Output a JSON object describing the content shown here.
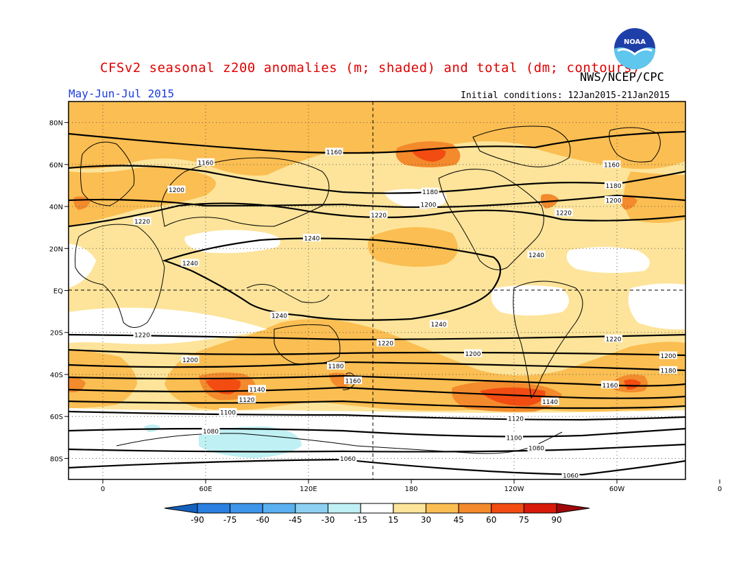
{
  "header": {
    "title": "CFSv2 seasonal z200 anomalies (m; shaded) and total (dm; contours)",
    "agency": "NWS/NCEP/CPC",
    "period": "May-Jun-Jul 2015",
    "initial_conditions": "Initial conditions: 12Jan2015-21Jan2015",
    "logo_text": "NOAA",
    "logo_icon": "noaa-logo-icon"
  },
  "map": {
    "projection": "cylindrical equidistant",
    "lat_ticks": [
      "80N",
      "60N",
      "40N",
      "20N",
      "EQ",
      "20S",
      "40S",
      "60S",
      "80S"
    ],
    "lon_ticks": [
      "0",
      "60E",
      "120E",
      "180",
      "120W",
      "60W",
      "0"
    ],
    "contour_labels": [
      {
        "text": "1160",
        "lon": 60,
        "lat": 61
      },
      {
        "text": "1160",
        "lon": 135,
        "lat": 66
      },
      {
        "text": "1160",
        "lon": 297,
        "lat": 60
      },
      {
        "text": "1180",
        "lon": 298,
        "lat": 50
      },
      {
        "text": "1180",
        "lon": 191,
        "lat": 47
      },
      {
        "text": "1200",
        "lon": 43,
        "lat": 48
      },
      {
        "text": "1200",
        "lon": 190,
        "lat": 41
      },
      {
        "text": "1200",
        "lon": 298,
        "lat": 43
      },
      {
        "text": "1220",
        "lon": 23,
        "lat": 33
      },
      {
        "text": "1220",
        "lon": 161,
        "lat": 36
      },
      {
        "text": "1220",
        "lon": 269,
        "lat": 37
      },
      {
        "text": "1240",
        "lon": 122,
        "lat": 25
      },
      {
        "text": "1240",
        "lon": 253,
        "lat": 17
      },
      {
        "text": "1240",
        "lon": 51,
        "lat": 13
      },
      {
        "text": "1240",
        "lon": 103,
        "lat": -12
      },
      {
        "text": "1240",
        "lon": 196,
        "lat": -16
      },
      {
        "text": "1220",
        "lon": 23,
        "lat": -21
      },
      {
        "text": "1220",
        "lon": 165,
        "lat": -25
      },
      {
        "text": "1220",
        "lon": 298,
        "lat": -23
      },
      {
        "text": "1200",
        "lon": 51,
        "lat": -33
      },
      {
        "text": "1200",
        "lon": 216,
        "lat": -30
      },
      {
        "text": "1200",
        "lon": 330,
        "lat": -31
      },
      {
        "text": "1180",
        "lon": 136,
        "lat": -36
      },
      {
        "text": "1180",
        "lon": 330,
        "lat": -38
      },
      {
        "text": "1160",
        "lon": 146,
        "lat": -43
      },
      {
        "text": "1160",
        "lon": 296,
        "lat": -45
      },
      {
        "text": "1140",
        "lon": 90,
        "lat": -47
      },
      {
        "text": "1140",
        "lon": 261,
        "lat": -53
      },
      {
        "text": "1120",
        "lon": 84,
        "lat": -52
      },
      {
        "text": "1120",
        "lon": 241,
        "lat": -61
      },
      {
        "text": "1100",
        "lon": 73,
        "lat": -58
      },
      {
        "text": "1100",
        "lon": 240,
        "lat": -70
      },
      {
        "text": "1080",
        "lon": 63,
        "lat": -67
      },
      {
        "text": "1080",
        "lon": 253,
        "lat": -75
      },
      {
        "text": "1060",
        "lon": 143,
        "lat": -80
      },
      {
        "text": "1060",
        "lon": 273,
        "lat": -88
      }
    ]
  },
  "colorbar": {
    "labels": [
      "-90",
      "-75",
      "-60",
      "-45",
      "-30",
      "-15",
      "15",
      "30",
      "45",
      "60",
      "75",
      "90"
    ],
    "colors": [
      "#1560bd",
      "#2a7fe0",
      "#3d95ea",
      "#5ab0f0",
      "#8dd0f4",
      "#bff0f4",
      "#ffffff",
      "#fde49a",
      "#fbbe52",
      "#f38a2c",
      "#f24c12",
      "#d71a0a",
      "#a00808"
    ],
    "units": "m"
  }
}
